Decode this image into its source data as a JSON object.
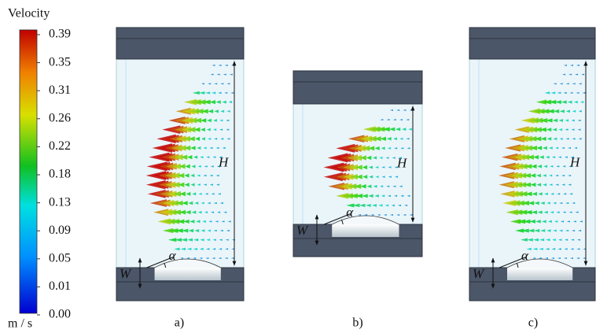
{
  "colorbar": {
    "title": "Velocity",
    "labels": [
      "0.39",
      "0.35",
      "0.31",
      "0.26",
      "0.22",
      "0.18",
      "0.13",
      "0.09",
      "0.05",
      "0.01",
      "0.00"
    ],
    "unit": "m / s"
  },
  "panels": [
    {
      "label": "a)",
      "height_label": "H",
      "width_label": "W",
      "angle_label": "α"
    },
    {
      "label": "b)",
      "height_label": "H",
      "width_label": "W",
      "angle_label": "α"
    },
    {
      "label": "c)",
      "height_label": "H",
      "width_label": "W",
      "angle_label": "α"
    }
  ]
}
